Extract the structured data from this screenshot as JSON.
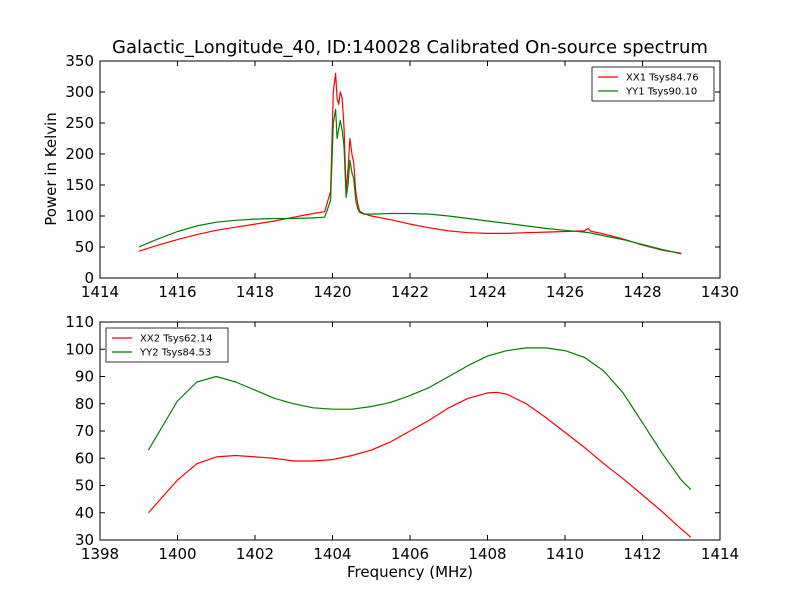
{
  "figure_title": "Galactic_Longitude_40, ID:140028 Calibrated On-source spectrum",
  "colors": {
    "red": "#ff0000",
    "green": "#007f00"
  },
  "chart_data": [
    {
      "type": "line",
      "title": "Galactic_Longitude_40, ID:140028 Calibrated On-source spectrum",
      "xlabel": "",
      "ylabel": "Power in Kelvin",
      "xlim": [
        1414,
        1430
      ],
      "ylim": [
        0,
        350
      ],
      "xticks": [
        1414,
        1416,
        1418,
        1420,
        1422,
        1424,
        1426,
        1428,
        1430
      ],
      "yticks": [
        0,
        50,
        100,
        150,
        200,
        250,
        300,
        350
      ],
      "legend_position": "top-right",
      "series": [
        {
          "name": "XX1 Tsys84.76",
          "color": "#ff0000",
          "x": [
            1415.0,
            1415.5,
            1416.0,
            1416.5,
            1417.0,
            1417.5,
            1418.0,
            1418.5,
            1419.0,
            1419.5,
            1419.8,
            1419.95,
            1420.02,
            1420.08,
            1420.12,
            1420.16,
            1420.2,
            1420.25,
            1420.3,
            1420.35,
            1420.4,
            1420.45,
            1420.5,
            1420.55,
            1420.6,
            1420.65,
            1420.7,
            1420.8,
            1421.0,
            1421.5,
            1422.0,
            1422.5,
            1423.0,
            1423.5,
            1424.0,
            1424.5,
            1425.0,
            1425.5,
            1426.0,
            1426.5,
            1426.6,
            1426.65,
            1426.7,
            1427.0,
            1427.5,
            1428.0,
            1428.5,
            1429.0
          ],
          "y": [
            43,
            53,
            62,
            70,
            77,
            82,
            87,
            92,
            98,
            104,
            107,
            140,
            300,
            330,
            290,
            280,
            300,
            290,
            240,
            140,
            175,
            225,
            200,
            185,
            140,
            120,
            108,
            104,
            100,
            94,
            87,
            81,
            76,
            73,
            72,
            72,
            73,
            74,
            75,
            76,
            80,
            76,
            75,
            71,
            63,
            53,
            45,
            40
          ]
        },
        {
          "name": "YY1 Tsys90.10",
          "color": "#007f00",
          "x": [
            1415.0,
            1415.5,
            1416.0,
            1416.5,
            1417.0,
            1417.5,
            1418.0,
            1418.5,
            1419.0,
            1419.5,
            1419.8,
            1419.95,
            1420.02,
            1420.08,
            1420.12,
            1420.16,
            1420.2,
            1420.25,
            1420.3,
            1420.35,
            1420.4,
            1420.45,
            1420.5,
            1420.55,
            1420.6,
            1420.65,
            1420.7,
            1420.8,
            1421.0,
            1421.5,
            1422.0,
            1422.5,
            1423.0,
            1423.5,
            1424.0,
            1424.5,
            1425.0,
            1425.5,
            1426.0,
            1426.5,
            1426.6,
            1426.65,
            1426.7,
            1427.0,
            1427.5,
            1428.0,
            1428.5,
            1429.0
          ],
          "y": [
            50,
            63,
            75,
            84,
            90,
            93,
            95,
            96,
            96,
            97,
            98,
            125,
            250,
            272,
            225,
            240,
            254,
            238,
            210,
            130,
            150,
            190,
            170,
            160,
            125,
            112,
            106,
            103,
            103,
            104,
            104,
            103,
            100,
            96,
            92,
            88,
            84,
            80,
            77,
            74,
            73,
            73,
            72,
            68,
            62,
            54,
            46,
            39
          ]
        }
      ]
    },
    {
      "type": "line",
      "title": "",
      "xlabel": "Frequency (MHz)",
      "ylabel": "",
      "xlim": [
        1398,
        1414
      ],
      "ylim": [
        30,
        110
      ],
      "xticks": [
        1398,
        1400,
        1402,
        1404,
        1406,
        1408,
        1410,
        1412,
        1414
      ],
      "yticks": [
        30,
        40,
        50,
        60,
        70,
        80,
        90,
        100,
        110
      ],
      "legend_position": "top-left",
      "series": [
        {
          "name": "XX2 Tsys62.14",
          "color": "#ff0000",
          "x": [
            1399.25,
            1399.5,
            1400.0,
            1400.5,
            1401.0,
            1401.5,
            1402.0,
            1402.5,
            1403.0,
            1403.5,
            1404.0,
            1404.5,
            1405.0,
            1405.5,
            1406.0,
            1406.5,
            1407.0,
            1407.5,
            1408.0,
            1408.25,
            1408.5,
            1409.0,
            1409.5,
            1410.0,
            1410.5,
            1411.0,
            1411.5,
            1412.0,
            1412.5,
            1413.0,
            1413.25
          ],
          "y": [
            40,
            44,
            52,
            58,
            60.5,
            61,
            60.5,
            60,
            59,
            59,
            59.5,
            61,
            63,
            66,
            70,
            74,
            78.5,
            82,
            84,
            84.2,
            83.5,
            80,
            75,
            69.5,
            64,
            58,
            52.5,
            46.5,
            40.5,
            34,
            31
          ]
        },
        {
          "name": "YY2 Tsys84.53",
          "color": "#007f00",
          "x": [
            1399.25,
            1399.5,
            1400.0,
            1400.5,
            1401.0,
            1401.5,
            1402.0,
            1402.5,
            1403.0,
            1403.5,
            1404.0,
            1404.5,
            1405.0,
            1405.5,
            1406.0,
            1406.5,
            1407.0,
            1407.5,
            1408.0,
            1408.5,
            1409.0,
            1409.5,
            1410.0,
            1410.5,
            1411.0,
            1411.5,
            1412.0,
            1412.5,
            1413.0,
            1413.25
          ],
          "y": [
            63,
            69,
            81,
            88,
            90,
            88,
            85,
            82,
            80,
            78.5,
            78,
            78,
            79,
            80.5,
            83,
            86,
            90,
            94,
            97.5,
            99.5,
            100.5,
            100.5,
            99.5,
            97,
            92,
            84,
            73,
            62,
            52,
            48.5
          ]
        }
      ]
    }
  ]
}
